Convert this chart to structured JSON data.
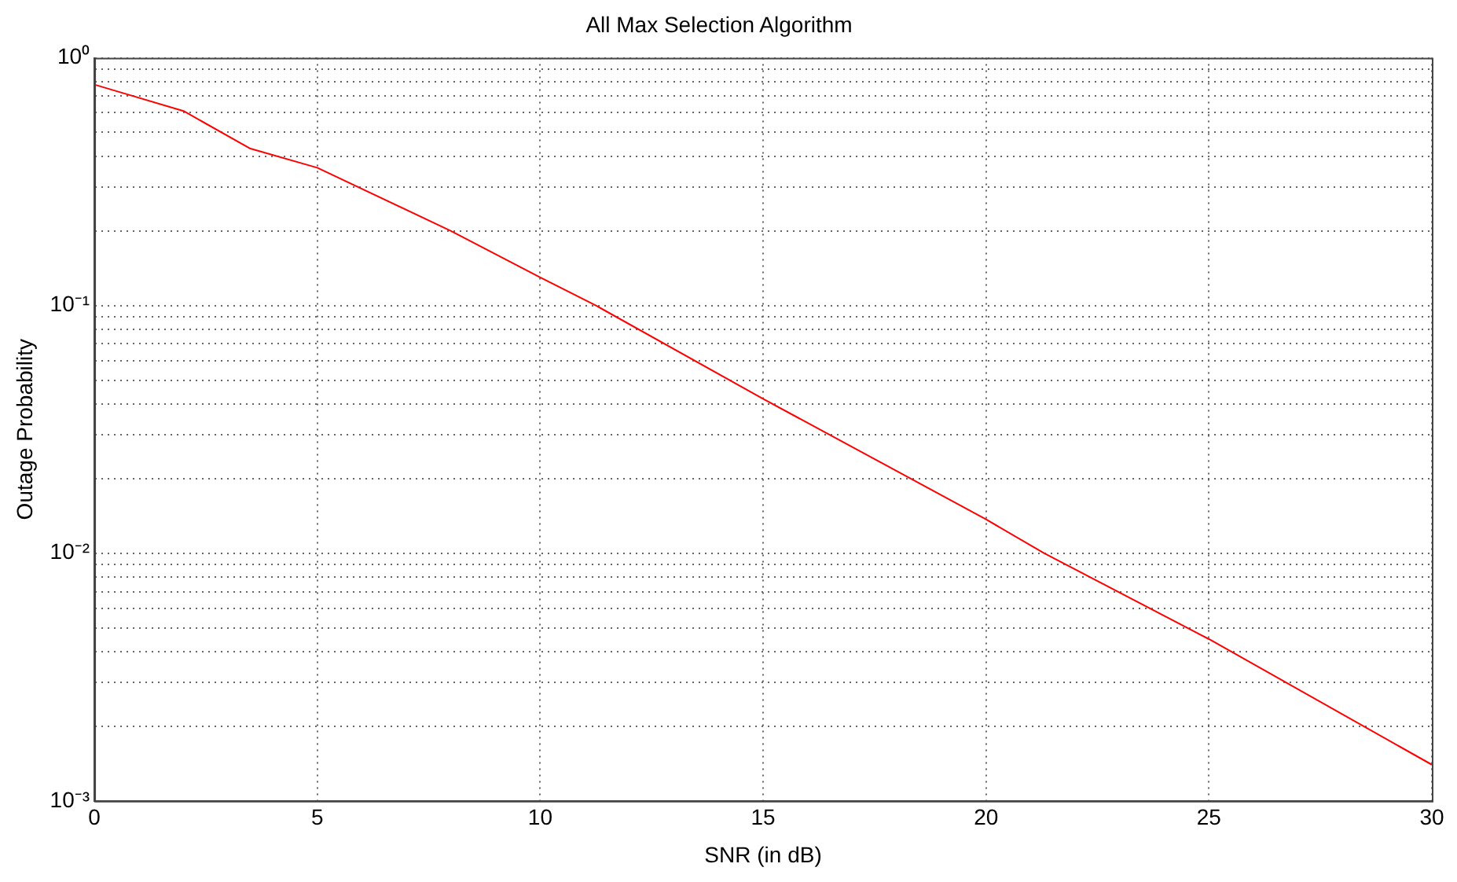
{
  "chart_data": {
    "type": "line",
    "title": "All Max Selection Algorithm",
    "xlabel": "SNR (in dB)",
    "ylabel": "Outage Probability",
    "x": [
      0,
      2,
      3.5,
      5,
      8,
      10,
      11.25,
      15,
      20,
      21.3,
      25,
      30
    ],
    "series": [
      {
        "color": "#ff0000",
        "values": [
          0.78,
          0.61,
          0.43,
          0.36,
          0.2,
          0.13,
          0.1,
          0.042,
          0.0137,
          0.01,
          0.0045,
          0.0014
        ]
      }
    ],
    "log": "y",
    "xlim": [
      0,
      30
    ],
    "xticks": [
      0,
      5,
      10,
      15,
      20,
      25,
      30
    ],
    "ylim": [
      0.001,
      1
    ],
    "yticks": [
      {
        "value": 0.001,
        "label": "10⁻³"
      },
      {
        "value": 0.002,
        "label": null
      },
      {
        "value": 0.003,
        "label": null
      },
      {
        "value": 0.004,
        "label": null
      },
      {
        "value": 0.005,
        "label": null
      },
      {
        "value": 0.006,
        "label": null
      },
      {
        "value": 0.007,
        "label": null
      },
      {
        "value": 0.008,
        "label": null
      },
      {
        "value": 0.009,
        "label": null
      },
      {
        "value": 0.01,
        "label": "10⁻²"
      },
      {
        "value": 0.02,
        "label": null
      },
      {
        "value": 0.03,
        "label": null
      },
      {
        "value": 0.04,
        "label": null
      },
      {
        "value": 0.05,
        "label": null
      },
      {
        "value": 0.06,
        "label": null
      },
      {
        "value": 0.07,
        "label": null
      },
      {
        "value": 0.08,
        "label": null
      },
      {
        "value": 0.09,
        "label": null
      },
      {
        "value": 0.1,
        "label": "10⁻¹"
      },
      {
        "value": 0.2,
        "label": null
      },
      {
        "value": 0.3,
        "label": null
      },
      {
        "value": 0.4,
        "label": null
      },
      {
        "value": 0.5,
        "label": null
      },
      {
        "value": 0.6,
        "label": null
      },
      {
        "value": 0.7,
        "label": null
      },
      {
        "value": 0.8,
        "label": null
      },
      {
        "value": 0.9,
        "label": null
      },
      {
        "value": 1,
        "label": "10⁰"
      }
    ],
    "grid": true,
    "legend": false,
    "marker": "none",
    "line_style": "solid"
  }
}
